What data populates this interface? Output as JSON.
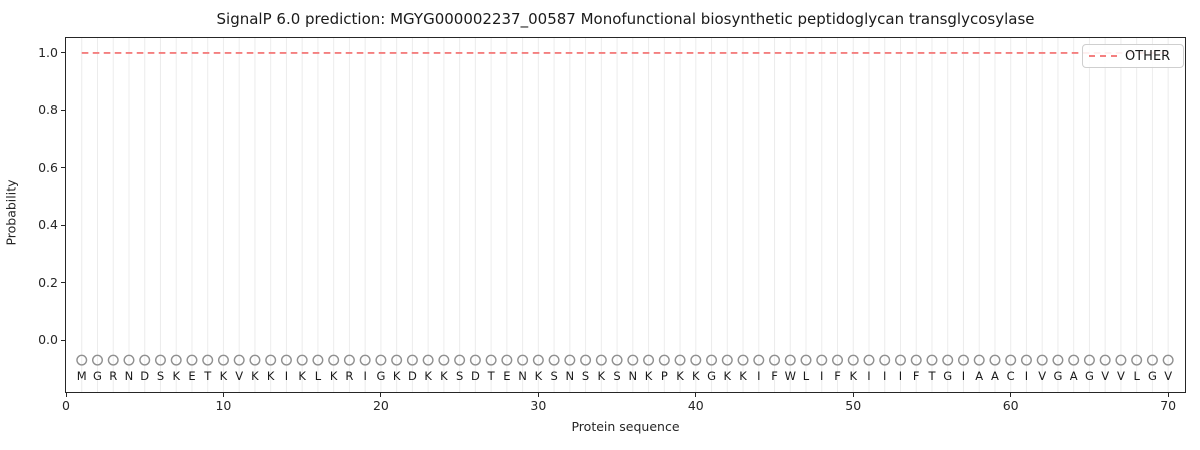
{
  "chart_data": {
    "type": "line",
    "title": "SignalP 6.0 prediction: MGYG000002237_00587 Monofunctional biosynthetic peptidoglycan transglycosylase",
    "xlabel": "Protein sequence",
    "ylabel": "Probability",
    "xlim": [
      0,
      71.07
    ],
    "ylim": [
      -0.181,
      1.052
    ],
    "x_tick_values": [
      0,
      10,
      20,
      30,
      40,
      50,
      60,
      70
    ],
    "x_tick_labels": [
      "0",
      "10",
      "20",
      "30",
      "40",
      "50",
      "60",
      "70"
    ],
    "y_tick_values": [
      0.0,
      0.2,
      0.4,
      0.6,
      0.8,
      1.0
    ],
    "y_tick_labels": [
      "0.0",
      "0.2",
      "0.4",
      "0.6",
      "0.8",
      "1.0"
    ],
    "grid": {
      "vertical_per_residue": true,
      "color": "#ececec"
    },
    "legend": {
      "position": "upper right",
      "entries": [
        {
          "label": "OTHER",
          "color": "#f47f7f",
          "linestyle": "dashed"
        }
      ]
    },
    "series": [
      {
        "name": "OTHER",
        "color": "#f47f7f",
        "linestyle": "dashed",
        "x_start": 1,
        "x_end": 70,
        "constant_y": 1.0
      }
    ],
    "sequence": "MGRNDSKETKVKKIKLKRIGKDKKSDTENKSNSKSNKPKKGKKIFWLIFKIIIFTGIAACIVGAGVVLGV",
    "sequence_start_position": 1,
    "residue_markers": {
      "shape": "circle",
      "y": -0.07,
      "color": "#909090"
    },
    "residue_letter_y": -0.125,
    "residue_letter_color": "#1a1a1a"
  }
}
